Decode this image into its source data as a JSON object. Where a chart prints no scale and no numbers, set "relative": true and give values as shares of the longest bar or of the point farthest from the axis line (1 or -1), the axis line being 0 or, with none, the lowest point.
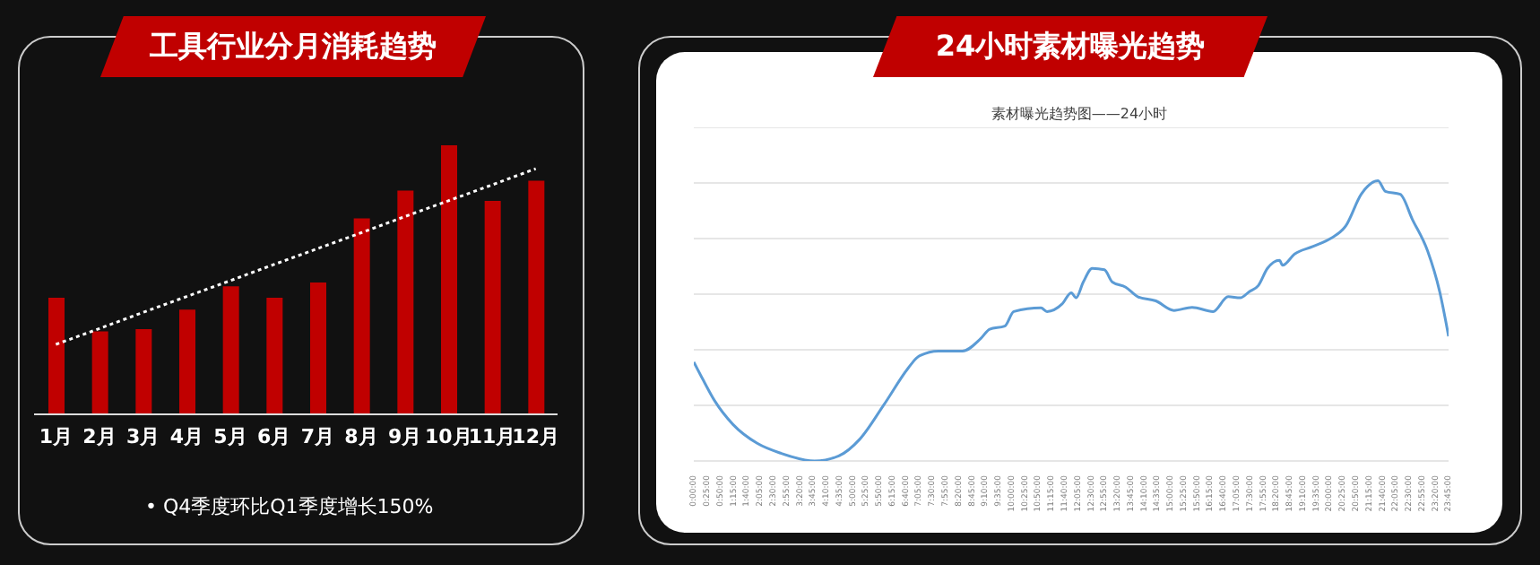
{
  "chart_data": [
    {
      "type": "bar",
      "title": "工具行业分月消耗趋势",
      "relative": true,
      "categories": [
        "1月",
        "2月",
        "3月",
        "4月",
        "5月",
        "6月",
        "7月",
        "8月",
        "9月",
        "10月",
        "11月",
        "12月"
      ],
      "series": [
        {
          "type": "bar",
          "color": "#c00000",
          "values": [
            0.433,
            0.308,
            0.317,
            0.389,
            0.476,
            0.433,
            0.49,
            0.728,
            0.832,
            1,
            0.793,
            0.868
          ]
        },
        {
          "type": "line",
          "color": "#ffffff",
          "line_style": "dotted",
          "values": [
            0.26,
            0.319,
            0.379,
            0.438,
            0.497,
            0.557,
            0.616,
            0.675,
            0.735,
            0.794,
            0.853,
            0.913
          ]
        }
      ],
      "annotations": [
        "•  Q4季度环比Q1季度增长150%"
      ],
      "legend": false,
      "grid": false
    },
    {
      "type": "line",
      "title": "24小时素材曝光趋势",
      "subtitle": "素材曝光趋势图——24小时",
      "relative": true,
      "grid": "y",
      "legend": false,
      "marker": "none",
      "xlim": [
        0,
        23.75
      ],
      "x": [
        0,
        0.285,
        0.665,
        1.235,
        1.995,
        2.755,
        3.8,
        4.56,
        5.225,
        5.985,
        6.745,
        7.03,
        7.125,
        7.695,
        8.455,
        9.025,
        9.31,
        9.785,
        10.07,
        10.925,
        11.115,
        11.59,
        11.875,
        12.03,
        12.255,
        12.54,
        12.92,
        13.17,
        13.59,
        13.97,
        14.54,
        15.11,
        15.68,
        16.34,
        16.815,
        17.195,
        17.48,
        17.765,
        18.05,
        18.43,
        18.525,
        18.905,
        19.475,
        20.045,
        20.52,
        21.0,
        21.53,
        21.76,
        22.23,
        22.61,
        23.09,
        23.47,
        23.75
      ],
      "series": [
        {
          "color": "#5b9bd5",
          "values": [
            0.353,
            0.291,
            0.213,
            0.13,
            0.063,
            0.027,
            0,
            0.018,
            0.078,
            0.201,
            0.331,
            0.369,
            0.376,
            0.392,
            0.392,
            0.436,
            0.47,
            0.481,
            0.533,
            0.546,
            0.533,
            0.56,
            0.6,
            0.582,
            0.638,
            0.687,
            0.682,
            0.638,
            0.62,
            0.586,
            0.571,
            0.537,
            0.548,
            0.533,
            0.586,
            0.582,
            0.604,
            0.626,
            0.687,
            0.716,
            0.698,
            0.738,
            0.765,
            0.794,
            0.839,
            0.951,
            1,
            0.962,
            0.951,
            0.862,
            0.749,
            0.604,
            0.445
          ]
        }
      ],
      "xticks": [
        {
          "value": 0,
          "label": "0:00:00"
        },
        {
          "value": 0.4166667,
          "label": "0:25:00"
        },
        {
          "value": 0.8333333,
          "label": "0:50:00"
        },
        {
          "value": 1.25,
          "label": "1:15:00"
        },
        {
          "value": 1.6666667,
          "label": "1:40:00"
        },
        {
          "value": 2.0833333,
          "label": "2:05:00"
        },
        {
          "value": 2.5,
          "label": "2:30:00"
        },
        {
          "value": 2.9166667,
          "label": "2:55:00"
        },
        {
          "value": 3.3333333,
          "label": "3:20:00"
        },
        {
          "value": 3.75,
          "label": "3:45:00"
        },
        {
          "value": 4.1666667,
          "label": "4:10:00"
        },
        {
          "value": 4.5833333,
          "label": "4:35:00"
        },
        {
          "value": 5,
          "label": "5:00:00"
        },
        {
          "value": 5.4166667,
          "label": "5:25:00"
        },
        {
          "value": 5.8333333,
          "label": "5:50:00"
        },
        {
          "value": 6.25,
          "label": "6:15:00"
        },
        {
          "value": 6.6666667,
          "label": "6:40:00"
        },
        {
          "value": 7.0833333,
          "label": "7:05:00"
        },
        {
          "value": 7.5,
          "label": "7:30:00"
        },
        {
          "value": 7.9166667,
          "label": "7:55:00"
        },
        {
          "value": 8.3333333,
          "label": "8:20:00"
        },
        {
          "value": 8.75,
          "label": "8:45:00"
        },
        {
          "value": 9.1666667,
          "label": "9:10:00"
        },
        {
          "value": 9.5833333,
          "label": "9:35:00"
        },
        {
          "value": 10,
          "label": "10:00:00"
        },
        {
          "value": 10.4166667,
          "label": "10:25:00"
        },
        {
          "value": 10.8333333,
          "label": "10:50:00"
        },
        {
          "value": 11.25,
          "label": "11:15:00"
        },
        {
          "value": 11.6666667,
          "label": "11:40:00"
        },
        {
          "value": 12.0833333,
          "label": "12:05:00"
        },
        {
          "value": 12.5,
          "label": "12:30:00"
        },
        {
          "value": 12.9166667,
          "label": "12:55:00"
        },
        {
          "value": 13.3333333,
          "label": "13:20:00"
        },
        {
          "value": 13.75,
          "label": "13:45:00"
        },
        {
          "value": 14.1666667,
          "label": "14:10:00"
        },
        {
          "value": 14.5833333,
          "label": "14:35:00"
        },
        {
          "value": 15,
          "label": "15:00:00"
        },
        {
          "value": 15.4166667,
          "label": "15:25:00"
        },
        {
          "value": 15.8333333,
          "label": "15:50:00"
        },
        {
          "value": 16.25,
          "label": "16:15:00"
        },
        {
          "value": 16.6666667,
          "label": "16:40:00"
        },
        {
          "value": 17.0833333,
          "label": "17:05:00"
        },
        {
          "value": 17.5,
          "label": "17:30:00"
        },
        {
          "value": 17.9166667,
          "label": "17:55:00"
        },
        {
          "value": 18.3333333,
          "label": "18:20:00"
        },
        {
          "value": 18.75,
          "label": "18:45:00"
        },
        {
          "value": 19.1666667,
          "label": "19:10:00"
        },
        {
          "value": 19.5833333,
          "label": "19:35:00"
        },
        {
          "value": 20,
          "label": "20:00:00"
        },
        {
          "value": 20.4166667,
          "label": "20:25:00"
        },
        {
          "value": 20.8333333,
          "label": "20:50:00"
        },
        {
          "value": 21.25,
          "label": "21:15:00"
        },
        {
          "value": 21.6666667,
          "label": "21:40:00"
        },
        {
          "value": 22.0833333,
          "label": "22:05:00"
        },
        {
          "value": 22.5,
          "label": "22:30:00"
        },
        {
          "value": 22.9166667,
          "label": "22:55:00"
        },
        {
          "value": 23.3333333,
          "label": "23:20:00"
        },
        {
          "value": 23.75,
          "label": "23:45:00"
        }
      ]
    }
  ]
}
